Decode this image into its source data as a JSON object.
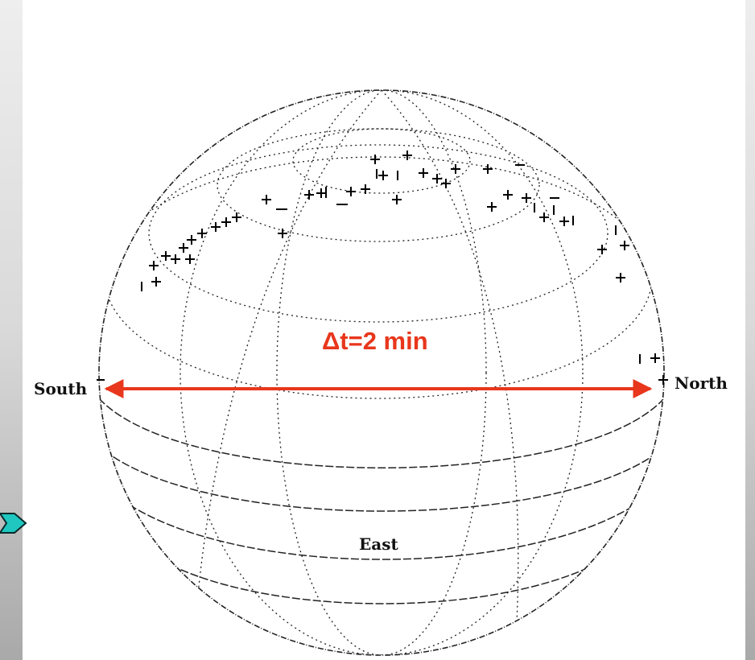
{
  "diagram": {
    "labels": {
      "south": "South",
      "north": "North",
      "east": "East",
      "duration": "Δt=2 min"
    },
    "colors": {
      "arrow": "#e8371c",
      "markers": "#000000",
      "grid": "#222222",
      "panel": "#ffffff",
      "bullet_fill": "#1fc7c0"
    },
    "icons": {
      "side_bullet": "arrow-right-icon"
    }
  }
}
